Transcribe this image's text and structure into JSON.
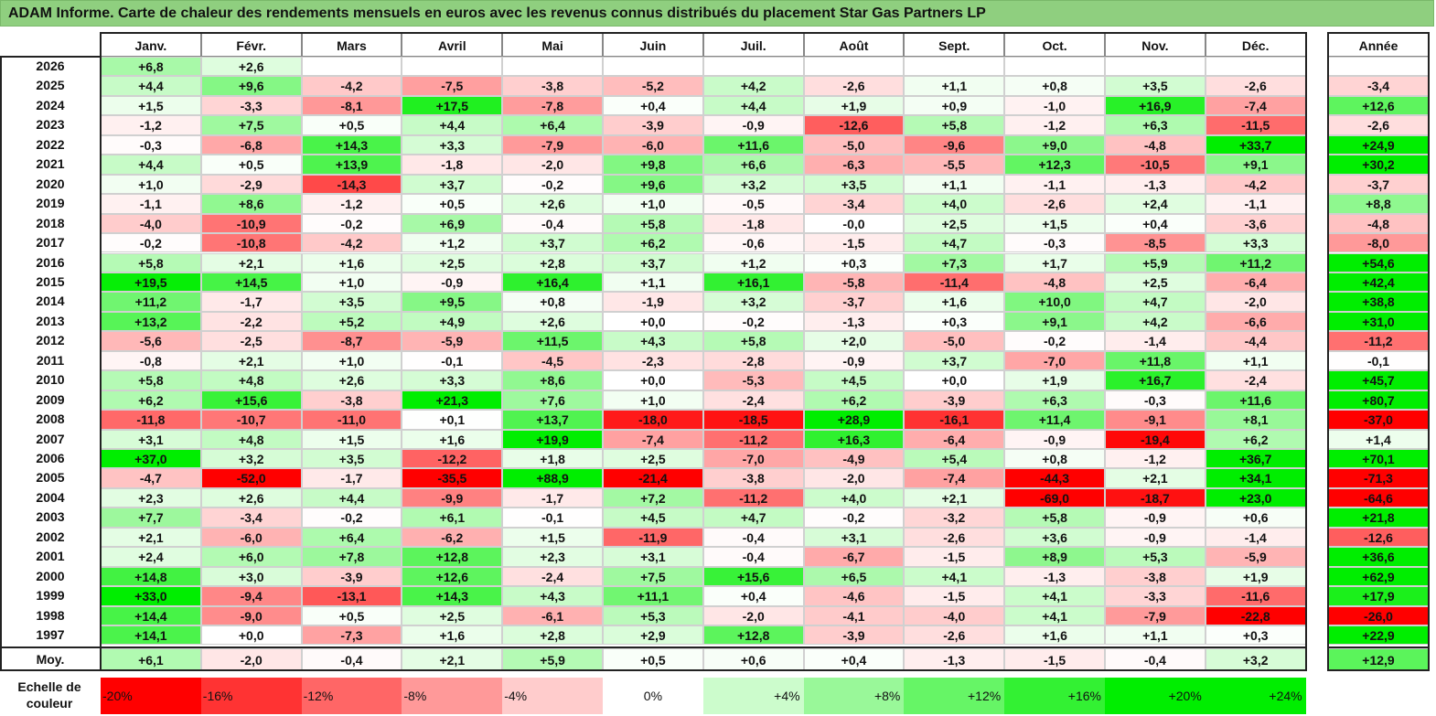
{
  "title": "ADAM Informe. Carte de chaleur des rendements mensuels en euros avec les revenus connus distribués du placement Star Gas Partners LP",
  "chart_data": {
    "type": "heatmap",
    "months": [
      "Janv.",
      "Févr.",
      "Mars",
      "Avril",
      "Mai",
      "Juin",
      "Juil.",
      "Août",
      "Sept.",
      "Oct.",
      "Nov.",
      "Déc."
    ],
    "year_header": "Année",
    "rows": [
      {
        "year": "2026",
        "values": [
          "+6,8",
          "+2,6",
          "",
          "",
          "",
          "",
          "",
          "",
          "",
          "",
          "",
          ""
        ],
        "annual": ""
      },
      {
        "year": "2025",
        "values": [
          "+4,4",
          "+9,6",
          "-4,2",
          "-7,5",
          "-3,8",
          "-5,2",
          "+4,2",
          "-2,6",
          "+1,1",
          "+0,8",
          "+3,5",
          "-2,6"
        ],
        "annual": "-3,4"
      },
      {
        "year": "2024",
        "values": [
          "+1,5",
          "-3,3",
          "-8,1",
          "+17,5",
          "-7,8",
          "+0,4",
          "+4,4",
          "+1,9",
          "+0,9",
          "-1,0",
          "+16,9",
          "-7,4"
        ],
        "annual": "+12,6"
      },
      {
        "year": "2023",
        "values": [
          "-1,2",
          "+7,5",
          "+0,5",
          "+4,4",
          "+6,4",
          "-3,9",
          "-0,9",
          "-12,6",
          "+5,8",
          "-1,2",
          "+6,3",
          "-11,5"
        ],
        "annual": "-2,6"
      },
      {
        "year": "2022",
        "values": [
          "-0,3",
          "-6,8",
          "+14,3",
          "+3,3",
          "-7,9",
          "-6,0",
          "+11,6",
          "-5,0",
          "-9,6",
          "+9,0",
          "-4,8",
          "+33,7"
        ],
        "annual": "+24,9"
      },
      {
        "year": "2021",
        "values": [
          "+4,4",
          "+0,5",
          "+13,9",
          "-1,8",
          "-2,0",
          "+9,8",
          "+6,6",
          "-6,3",
          "-5,5",
          "+12,3",
          "-10,5",
          "+9,1"
        ],
        "annual": "+30,2"
      },
      {
        "year": "2020",
        "values": [
          "+1,0",
          "-2,9",
          "-14,3",
          "+3,7",
          "-0,2",
          "+9,6",
          "+3,2",
          "+3,5",
          "+1,1",
          "-1,1",
          "-1,3",
          "-4,2"
        ],
        "annual": "-3,7"
      },
      {
        "year": "2019",
        "values": [
          "-1,1",
          "+8,6",
          "-1,2",
          "+0,5",
          "+2,6",
          "+1,0",
          "-0,5",
          "-3,4",
          "+4,0",
          "-2,6",
          "+2,4",
          "-1,1"
        ],
        "annual": "+8,8"
      },
      {
        "year": "2018",
        "values": [
          "-4,0",
          "-10,9",
          "-0,2",
          "+6,9",
          "-0,4",
          "+5,8",
          "-1,8",
          "-0,0",
          "+2,5",
          "+1,5",
          "+0,4",
          "-3,6"
        ],
        "annual": "-4,8"
      },
      {
        "year": "2017",
        "values": [
          "-0,2",
          "-10,8",
          "-4,2",
          "+1,2",
          "+3,7",
          "+6,2",
          "-0,6",
          "-1,5",
          "+4,7",
          "-0,3",
          "-8,5",
          "+3,3"
        ],
        "annual": "-8,0"
      },
      {
        "year": "2016",
        "values": [
          "+5,8",
          "+2,1",
          "+1,6",
          "+2,5",
          "+2,8",
          "+3,7",
          "+1,2",
          "+0,3",
          "+7,3",
          "+1,7",
          "+5,9",
          "+11,2"
        ],
        "annual": "+54,6"
      },
      {
        "year": "2015",
        "values": [
          "+19,5",
          "+14,5",
          "+1,0",
          "-0,9",
          "+16,4",
          "+1,1",
          "+16,1",
          "-5,8",
          "-11,4",
          "-4,8",
          "+2,5",
          "-6,4"
        ],
        "annual": "+42,4"
      },
      {
        "year": "2014",
        "values": [
          "+11,2",
          "-1,7",
          "+3,5",
          "+9,5",
          "+0,8",
          "-1,9",
          "+3,2",
          "-3,7",
          "+1,6",
          "+10,0",
          "+4,7",
          "-2,0"
        ],
        "annual": "+38,8"
      },
      {
        "year": "2013",
        "values": [
          "+13,2",
          "-2,2",
          "+5,2",
          "+4,9",
          "+2,6",
          "+0,0",
          "-0,2",
          "-1,3",
          "+0,3",
          "+9,1",
          "+4,2",
          "-6,6"
        ],
        "annual": "+31,0"
      },
      {
        "year": "2012",
        "values": [
          "-5,6",
          "-2,5",
          "-8,7",
          "-5,9",
          "+11,5",
          "+4,3",
          "+5,8",
          "+2,0",
          "-5,0",
          "-0,2",
          "-1,4",
          "-4,4"
        ],
        "annual": "-11,2"
      },
      {
        "year": "2011",
        "values": [
          "-0,8",
          "+2,1",
          "+1,0",
          "-0,1",
          "-4,5",
          "-2,3",
          "-2,8",
          "-0,9",
          "+3,7",
          "-7,0",
          "+11,8",
          "+1,1"
        ],
        "annual": "-0,1"
      },
      {
        "year": "2010",
        "values": [
          "+5,8",
          "+4,8",
          "+2,6",
          "+3,3",
          "+8,6",
          "+0,0",
          "-5,3",
          "+4,5",
          "+0,0",
          "+1,9",
          "+16,7",
          "-2,4"
        ],
        "annual": "+45,7"
      },
      {
        "year": "2009",
        "values": [
          "+6,2",
          "+15,6",
          "-3,8",
          "+21,3",
          "+7,6",
          "+1,0",
          "-2,4",
          "+6,2",
          "-3,9",
          "+6,3",
          "-0,3",
          "+11,6"
        ],
        "annual": "+80,7"
      },
      {
        "year": "2008",
        "values": [
          "-11,8",
          "-10,7",
          "-11,0",
          "+0,1",
          "+13,7",
          "-18,0",
          "-18,5",
          "+28,9",
          "-16,1",
          "+11,4",
          "-9,1",
          "+8,1"
        ],
        "annual": "-37,0"
      },
      {
        "year": "2007",
        "values": [
          "+3,1",
          "+4,8",
          "+1,5",
          "+1,6",
          "+19,9",
          "-7,4",
          "-11,2",
          "+16,3",
          "-6,4",
          "-0,9",
          "-19,4",
          "+6,2"
        ],
        "annual": "+1,4"
      },
      {
        "year": "2006",
        "values": [
          "+37,0",
          "+3,2",
          "+3,5",
          "-12,2",
          "+1,8",
          "+2,5",
          "-7,0",
          "-4,9",
          "+5,4",
          "+0,8",
          "-1,2",
          "+36,7"
        ],
        "annual": "+70,1"
      },
      {
        "year": "2005",
        "values": [
          "-4,7",
          "-52,0",
          "-1,7",
          "-35,5",
          "+88,9",
          "-21,4",
          "-3,8",
          "-2,0",
          "-7,4",
          "-44,3",
          "+2,1",
          "+34,1"
        ],
        "annual": "-71,3"
      },
      {
        "year": "2004",
        "values": [
          "+2,3",
          "+2,6",
          "+4,4",
          "-9,9",
          "-1,7",
          "+7,2",
          "-11,2",
          "+4,0",
          "+2,1",
          "-69,0",
          "-18,7",
          "+23,0"
        ],
        "annual": "-64,6"
      },
      {
        "year": "2003",
        "values": [
          "+7,7",
          "-3,4",
          "-0,2",
          "+6,1",
          "-0,1",
          "+4,5",
          "+4,7",
          "-0,2",
          "-3,2",
          "+5,8",
          "-0,9",
          "+0,6"
        ],
        "annual": "+21,8"
      },
      {
        "year": "2002",
        "values": [
          "+2,1",
          "-6,0",
          "+6,4",
          "-6,2",
          "+1,5",
          "-11,9",
          "-0,4",
          "+3,1",
          "-2,6",
          "+3,6",
          "-0,9",
          "-1,4"
        ],
        "annual": "-12,6"
      },
      {
        "year": "2001",
        "values": [
          "+2,4",
          "+6,0",
          "+7,8",
          "+12,8",
          "+2,3",
          "+3,1",
          "-0,4",
          "-6,7",
          "-1,5",
          "+8,9",
          "+5,3",
          "-5,9"
        ],
        "annual": "+36,6"
      },
      {
        "year": "2000",
        "values": [
          "+14,8",
          "+3,0",
          "-3,9",
          "+12,6",
          "-2,4",
          "+7,5",
          "+15,6",
          "+6,5",
          "+4,1",
          "-1,3",
          "-3,8",
          "+1,9"
        ],
        "annual": "+62,9"
      },
      {
        "year": "1999",
        "values": [
          "+33,0",
          "-9,4",
          "-13,1",
          "+14,3",
          "+4,3",
          "+11,1",
          "+0,4",
          "-4,6",
          "-1,5",
          "+4,1",
          "-3,3",
          "-11,6"
        ],
        "annual": "+17,9"
      },
      {
        "year": "1998",
        "values": [
          "+14,4",
          "-9,0",
          "+0,5",
          "+2,5",
          "-6,1",
          "+5,3",
          "-2,0",
          "-4,1",
          "-4,0",
          "+4,1",
          "-7,9",
          "-22,8"
        ],
        "annual": "-26,0"
      },
      {
        "year": "1997",
        "values": [
          "+14,1",
          "+0,0",
          "-7,3",
          "+1,6",
          "+2,8",
          "+2,9",
          "+12,8",
          "-3,9",
          "-2,6",
          "+1,6",
          "+1,1",
          "+0,3"
        ],
        "annual": "+22,9"
      }
    ],
    "average": {
      "label": "Moy.",
      "values": [
        "+6,1",
        "-2,0",
        "-0,4",
        "+2,1",
        "+5,9",
        "+0,5",
        "+0,6",
        "+0,4",
        "-1,3",
        "-1,5",
        "-0,4",
        "+3,2"
      ],
      "annual": "+12,9"
    },
    "color_scale": {
      "label": "Echelle de couleur",
      "steps": [
        "-20%",
        "-16%",
        "-12%",
        "-8%",
        "-4%",
        "0%",
        "+4%",
        "+8%",
        "+12%",
        "+16%",
        "+20%",
        "+24%"
      ],
      "negative_color": "#ff0000",
      "neutral_color": "#ffffff",
      "positive_color": "#00ee00"
    }
  }
}
